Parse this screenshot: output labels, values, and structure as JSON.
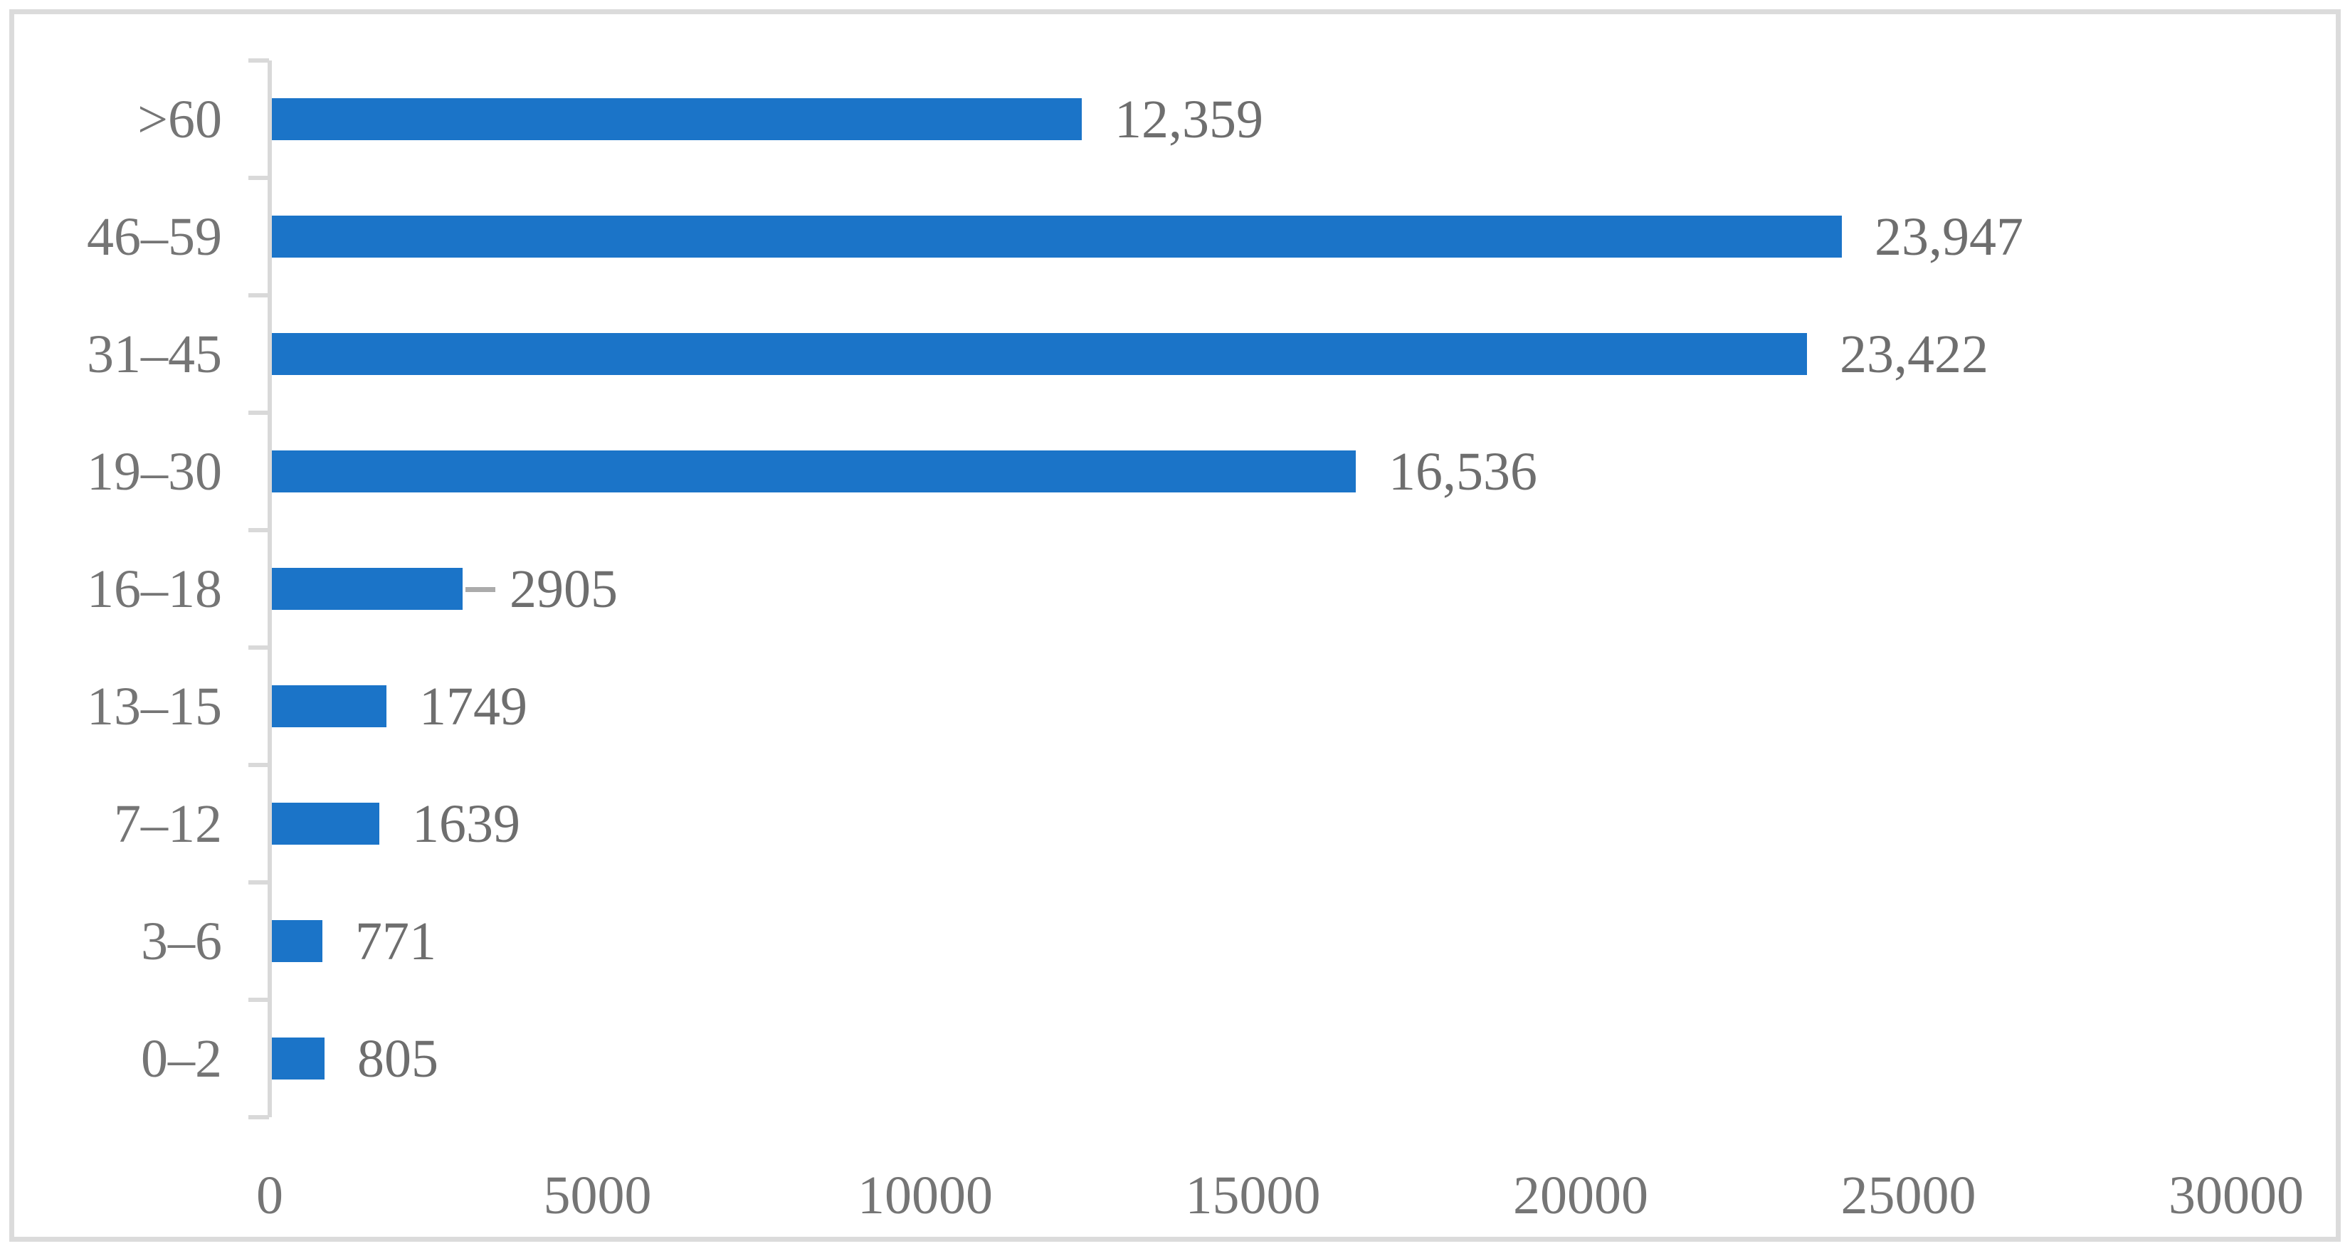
{
  "figure": {
    "background": "#FFFFFF",
    "border_color": "#DBDBDB"
  },
  "chart_data": {
    "type": "bar",
    "orientation": "horizontal",
    "title": "",
    "xlabel": "",
    "ylabel": "",
    "xlim": [
      0,
      30000
    ],
    "x_ticks": [
      0,
      5000,
      10000,
      15000,
      20000,
      25000,
      30000
    ],
    "x_tick_labels": [
      "0",
      "5000",
      "10000",
      "15000",
      "20000",
      "25000",
      "30000"
    ],
    "grid": "off",
    "legend": "none",
    "bar_color": "#1B74C8",
    "axis_color": "#D9D9D9",
    "category_label_color": "#757575",
    "data_label_color": "#6E6E6E",
    "leader_line_color": "#ABABAB",
    "points": [
      {
        "category": ">60",
        "value": 12359,
        "label": "12,359"
      },
      {
        "category": "46–59",
        "value": 23947,
        "label": "23,947"
      },
      {
        "category": "31–45",
        "value": 23422,
        "label": "23,422"
      },
      {
        "category": "19–30",
        "value": 16536,
        "label": "16,536"
      },
      {
        "category": "16–18",
        "value": 2905,
        "label": "2905",
        "leader_line": true
      },
      {
        "category": "13–15",
        "value": 1749,
        "label": "1749"
      },
      {
        "category": "7–12",
        "value": 1639,
        "label": "1639"
      },
      {
        "category": "3–6",
        "value": 771,
        "label": "771"
      },
      {
        "category": "0–2",
        "value": 805,
        "label": "805"
      }
    ]
  }
}
